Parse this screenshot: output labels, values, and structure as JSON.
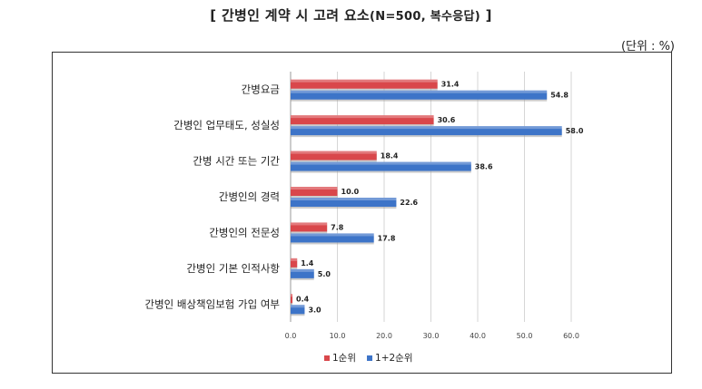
{
  "title": {
    "main": "[ 간병인 계약 시 고려 요소",
    "sub": "(N=500, 복수응답)",
    "end": " ]"
  },
  "unit": "(단위 : %)",
  "chart_data": {
    "type": "bar",
    "orientation": "horizontal",
    "categories": [
      "간병요금",
      "간병인 업무태도, 성실성",
      "간병 시간 또는 기간",
      "간병인의 경력",
      "간병인의 전문성",
      "간병인 기본 인적사항",
      "간병인 배상책임보험 가입 여부"
    ],
    "series": [
      {
        "name": "1순위",
        "color": "#d9474b",
        "values": [
          31.4,
          30.6,
          18.4,
          10.0,
          7.8,
          1.4,
          0.4
        ]
      },
      {
        "name": "1+2순위",
        "color": "#3d74c8",
        "values": [
          54.8,
          58.0,
          38.6,
          22.6,
          17.8,
          5.0,
          3.0
        ]
      }
    ],
    "xlim": [
      0,
      60
    ],
    "xticks": [
      "0.0",
      "10.0",
      "20.0",
      "30.0",
      "40.0",
      "50.0",
      "60.0"
    ],
    "grid": true,
    "legend_position": "bottom"
  }
}
